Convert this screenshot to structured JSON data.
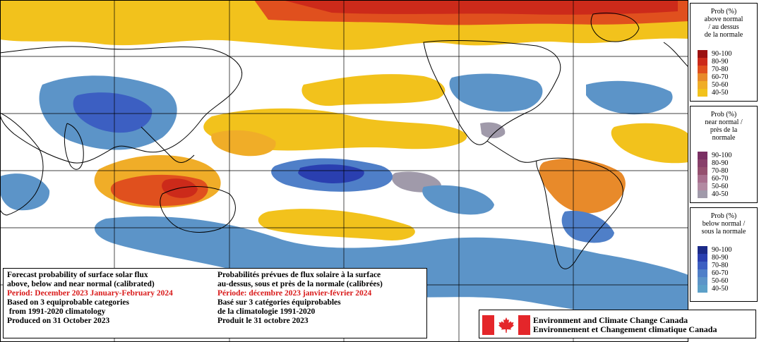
{
  "map": {
    "background_color": "#ffffff",
    "land_outline_color": "#000000",
    "categories": {
      "above": [
        "#9c1010",
        "#cc2a1a",
        "#e0501e",
        "#e88a2a",
        "#f0ad28",
        "#f2c21c"
      ],
      "near": [
        "#7a2f63",
        "#95506f",
        "#a86f8e",
        "#b28aa2",
        "#a09aaa"
      ],
      "below": [
        "#1b2a88",
        "#2a3fb0",
        "#3c5fc2",
        "#4f7fc8",
        "#5c94c8"
      ]
    }
  },
  "legend_above": {
    "title_lines": [
      "Prob (%)",
      "above normal",
      "/ au dessus",
      "de la normale"
    ],
    "items": [
      {
        "label": "90-100",
        "color": "#9c1010"
      },
      {
        "label": "80-90",
        "color": "#cc2a1a"
      },
      {
        "label": "70-80",
        "color": "#e0501e"
      },
      {
        "label": "60-70",
        "color": "#e88a2a"
      },
      {
        "label": "50-60",
        "color": "#f0ad28"
      },
      {
        "label": "40-50",
        "color": "#f2c21c"
      }
    ]
  },
  "legend_near": {
    "title_lines": [
      "Prob (%)",
      "near normal /",
      "près de la",
      "normale"
    ],
    "items": [
      {
        "label": "90-100",
        "color": "#7a2f63"
      },
      {
        "label": "80-90",
        "color": "#88406a"
      },
      {
        "label": "70-80",
        "color": "#95506f"
      },
      {
        "label": "60-70",
        "color": "#a86f8e"
      },
      {
        "label": "50-60",
        "color": "#b28aa2"
      },
      {
        "label": "40-50",
        "color": "#a09aaa"
      }
    ]
  },
  "legend_below": {
    "title_lines": [
      "Prob (%)",
      "below normal /",
      "sous la normale"
    ],
    "items": [
      {
        "label": "90-100",
        "color": "#1b2a88"
      },
      {
        "label": "80-90",
        "color": "#2a3fb0"
      },
      {
        "label": "70-80",
        "color": "#3c5fc2"
      },
      {
        "label": "60-70",
        "color": "#4f7fc8"
      },
      {
        "label": "50-60",
        "color": "#5c94c8"
      },
      {
        "label": "40-50",
        "color": "#5ca0c8"
      }
    ]
  },
  "info_en": {
    "line1": "Forecast probability of surface solar flux",
    "line2": "above, below and near normal (calibrated)",
    "period": "Period: December 2023 January-February 2024",
    "line4": "Based on 3 equiprobable categories",
    "line5": " from 1991-2020 climatology",
    "line6": "Produced on 31 October 2023"
  },
  "info_fr": {
    "line1": "Probabilités prévues de flux solaire à la surface",
    "line2": "au-dessus, sous et près de la normale (calibrées)",
    "period": "Période: décembre 2023 janvier-février 2024",
    "line4": "Basé sur 3 catégories équiprobables",
    "line5": "de la climatologie 1991-2020",
    "line6": "Produit le 31 octobre 2023"
  },
  "agency": {
    "name_en": "Environment and Climate Change Canada",
    "name_fr": "Environnement et Changement climatique Canada",
    "flag_color": "#e4262a"
  }
}
